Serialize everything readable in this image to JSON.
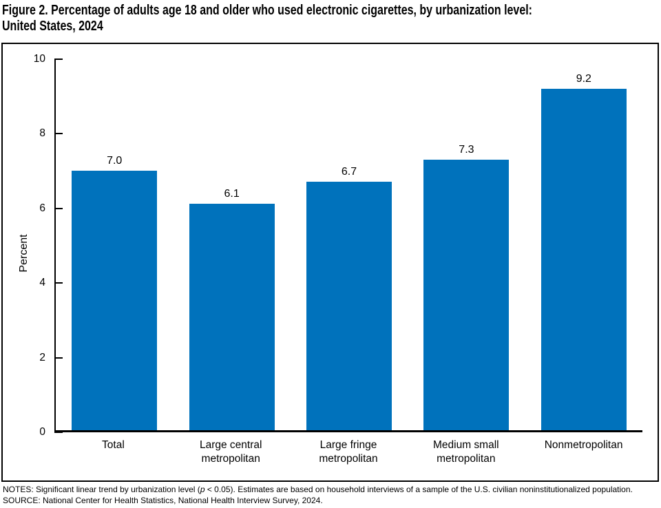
{
  "title": {
    "line1": "Figure 2. Percentage of adults age 18 and older who used electronic cigarettes, by urbanization level:",
    "line2": "United States, 2024"
  },
  "chart_data": {
    "type": "bar",
    "title": "Figure 2. Percentage of adults age 18 and older who used electronic cigarettes, by urbanization level: United States, 2024",
    "categories": [
      "Total",
      "Large central\nmetropolitan",
      "Large fringe\nmetropolitan",
      "Medium small\nmetropolitan",
      "Nonmetropolitan"
    ],
    "values": [
      7.0,
      6.1,
      6.7,
      7.3,
      9.2
    ],
    "value_labels": [
      "7.0",
      "6.1",
      "6.7",
      "7.3",
      "9.2"
    ],
    "xlabel": "",
    "ylabel": "Percent",
    "ylim": [
      0,
      10
    ],
    "yticks": [
      0,
      2,
      4,
      6,
      8,
      10
    ],
    "grid": false,
    "legend_position": "none",
    "bar_color": "#0072BC"
  },
  "notes": {
    "notes_prefix": "NOTES: Significant linear trend by urbanization level (",
    "notes_italic": "p",
    "notes_suffix": " < 0.05). Estimates are based on household interviews of a sample of the U.S. civilian noninstitutionalized population.",
    "source": "SOURCE: National Center for Health Statistics, National Health Interview Survey, 2024."
  }
}
